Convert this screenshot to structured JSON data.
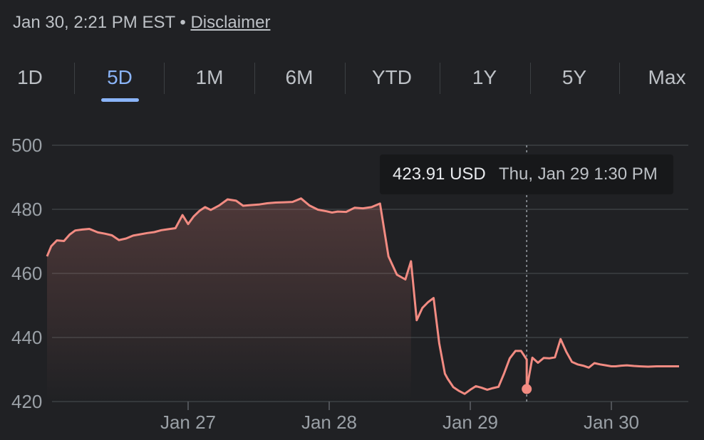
{
  "header": {
    "timestamp": "Jan 30, 2:21 PM EST",
    "separator": "•",
    "disclaimer_label": "Disclaimer"
  },
  "tabs": [
    {
      "label": "1D",
      "active": false
    },
    {
      "label": "5D",
      "active": true
    },
    {
      "label": "1M",
      "active": false
    },
    {
      "label": "6M",
      "active": false
    },
    {
      "label": "YTD",
      "active": false
    },
    {
      "label": "1Y",
      "active": false
    },
    {
      "label": "5Y",
      "active": false
    },
    {
      "label": "Max",
      "active": false
    }
  ],
  "tooltip": {
    "price": "423.91 USD",
    "time": "Thu, Jan 29 1:30 PM"
  },
  "colors": {
    "line": "#f28b82",
    "accent": "#8ab4f8",
    "background": "#202124"
  },
  "chart_data": {
    "type": "area",
    "ylim": [
      420,
      500
    ],
    "yticks": [
      420,
      440,
      460,
      480,
      500
    ],
    "xticks": [
      "Jan 27",
      "Jan 28",
      "Jan 29",
      "Jan 30"
    ],
    "xlim": [
      0,
      4.5
    ],
    "xtick_positions": [
      1,
      2,
      3,
      4
    ],
    "grid": true,
    "highlight_index": 94,
    "x": [
      0.0,
      0.03,
      0.07,
      0.12,
      0.16,
      0.2,
      0.25,
      0.3,
      0.36,
      0.41,
      0.46,
      0.51,
      0.56,
      0.61,
      0.66,
      0.71,
      0.76,
      0.81,
      0.86,
      0.91,
      0.96,
      1.0,
      1.04,
      1.08,
      1.12,
      1.16,
      1.22,
      1.28,
      1.34,
      1.39,
      1.44,
      1.5,
      1.56,
      1.62,
      1.68,
      1.74,
      1.8,
      1.86,
      1.92,
      1.98,
      2.02,
      2.06,
      2.12,
      2.18,
      2.24,
      2.3,
      2.36,
      2.42,
      2.48,
      2.54,
      2.58,
      2.62,
      2.66,
      2.7,
      2.74,
      2.78,
      2.82,
      2.84,
      2.88,
      2.92,
      2.96,
      3.0,
      3.04,
      3.08,
      3.12,
      3.16,
      3.2,
      3.24,
      3.28,
      3.32,
      3.36,
      3.4,
      3.44,
      3.48,
      3.52,
      3.56,
      3.6,
      3.64,
      3.68,
      3.72,
      3.76,
      3.8,
      3.84,
      3.88,
      3.92,
      3.96,
      4.0,
      4.03,
      4.07,
      4.11,
      4.16,
      4.2,
      4.26,
      4.32,
      3.4,
      4.38,
      4.44,
      4.48
    ],
    "y": [
      465.3,
      468.5,
      470.3,
      470.1,
      472.1,
      473.4,
      473.7,
      473.9,
      472.8,
      472.4,
      471.9,
      470.4,
      470.9,
      471.8,
      472.2,
      472.6,
      472.9,
      473.5,
      473.8,
      474.1,
      478.2,
      475.4,
      477.8,
      479.5,
      480.7,
      479.8,
      481.2,
      483.1,
      482.7,
      481.1,
      481.3,
      481.5,
      481.9,
      482.1,
      482.2,
      482.3,
      483.4,
      481.2,
      479.9,
      479.4,
      479.0,
      479.3,
      479.2,
      480.5,
      480.3,
      480.7,
      481.8,
      465.3,
      459.6,
      458.1,
      463.8,
      445.4,
      449.2,
      451.0,
      452.3,
      438.2,
      428.7,
      427.1,
      424.5,
      423.3,
      422.4,
      423.7,
      424.8,
      424.3,
      423.7,
      424.2,
      424.6,
      428.8,
      433.5,
      435.8,
      435.8,
      433.1,
      433.7,
      432.1,
      433.6,
      433.5,
      433.8,
      439.5,
      435.6,
      432.4,
      431.6,
      431.2,
      430.6,
      432.0,
      431.6,
      431.3,
      431.0,
      431.0,
      431.2,
      431.3,
      431.1,
      431.0,
      430.9,
      431.0,
      423.91,
      431.0,
      431.0,
      431.0
    ]
  }
}
